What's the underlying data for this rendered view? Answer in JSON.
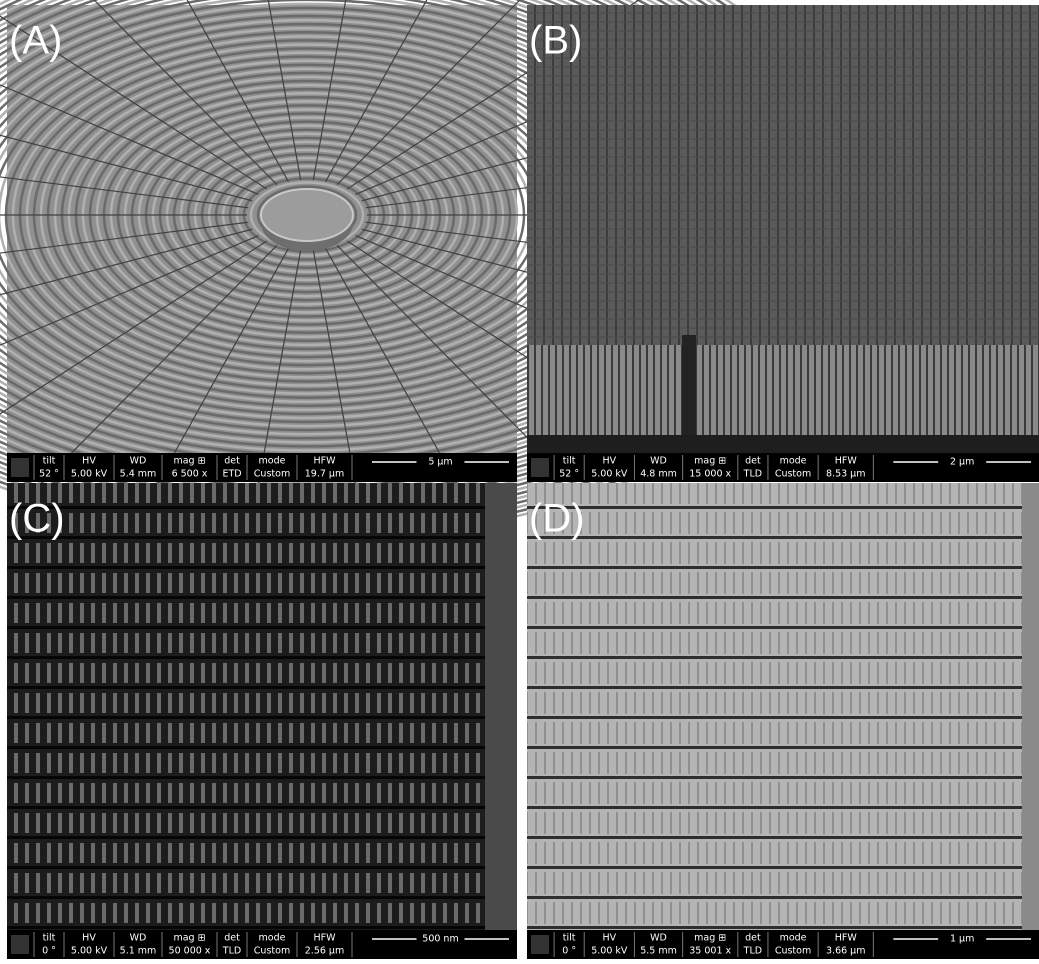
{
  "infobar_headers": [
    "tilt",
    "HV",
    "WD",
    "mag ⊞",
    "det",
    "mode",
    "HFW"
  ],
  "panels": [
    {
      "label": "(A)",
      "values": [
        "52 °",
        "5.00 kV",
        "5.4 mm",
        "6 500 x",
        "ETD",
        "Custom",
        "19.7 µm"
      ],
      "scale": "5 µm"
    },
    {
      "label": "(B)",
      "values": [
        "52 °",
        "5.00 kV",
        "4.8 mm",
        "15 000 x",
        "TLD",
        "Custom",
        "8.53 µm"
      ],
      "scale": "2 µm"
    },
    {
      "label": "(C)",
      "values": [
        "0 °",
        "5.00 kV",
        "5.1 mm",
        "50 000 x",
        "TLD",
        "Custom",
        "2.56 µm"
      ],
      "scale": "500 nm"
    },
    {
      "label": "(D)",
      "values": [
        "0 °",
        "5.00 kV",
        "5.5 mm",
        "35 001 x",
        "TLD",
        "Custom",
        "3.66 µm"
      ],
      "scale": "1 µm"
    }
  ]
}
